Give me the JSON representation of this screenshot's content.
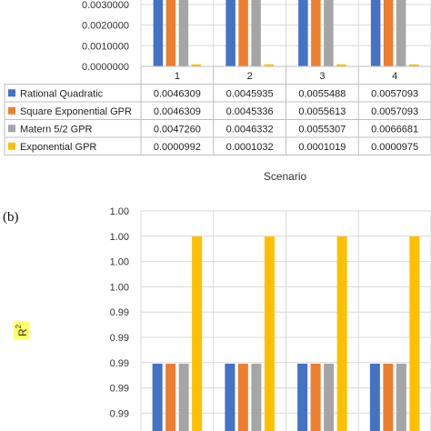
{
  "chart_data": [
    {
      "type": "bar",
      "panel": "",
      "categories": [
        "1",
        "2",
        "3",
        "4"
      ],
      "series": [
        {
          "name": "Rational Quadratic",
          "color": "#4472C4",
          "values_text": [
            "0.0046309",
            "0.0045935",
            "0.0055488",
            "0.0057093"
          ],
          "values": [
            0.0046309,
            0.0045935,
            0.0055488,
            0.0057093
          ]
        },
        {
          "name": "Square Exponential GPR",
          "color": "#ED7D31",
          "values_text": [
            "0.0046309",
            "0.0045336",
            "0.0055613",
            "0.0057093"
          ],
          "values": [
            0.0046309,
            0.0045336,
            0.0055613,
            0.0057093
          ]
        },
        {
          "name": "Matern 5/2 GPR",
          "color": "#A5A5A5",
          "values_text": [
            "0.0047260",
            "0.0046332",
            "0.0055307",
            "0.0066681"
          ],
          "values": [
            0.004726,
            0.0046332,
            0.0055307,
            0.0066681
          ]
        },
        {
          "name": "Exponential GPR",
          "color": "#FFC000",
          "values_text": [
            "0.0000992",
            "0.0001032",
            "0.0001019",
            "0.0000975"
          ],
          "values": [
            9.92e-05,
            0.0001032,
            0.0001019,
            9.75e-05
          ]
        }
      ],
      "yticks": [
        "0.0030000",
        "0.0020000",
        "0.0010000",
        "0.0000000"
      ],
      "ylim": [
        0,
        0.003
      ],
      "xlabel": "Scenario",
      "ylabel": "",
      "data_table": true,
      "grid": true
    },
    {
      "type": "bar",
      "panel": "(b)",
      "categories": [
        "1",
        "2",
        "3",
        "4"
      ],
      "series": [
        {
          "name": "Rational Quadratic",
          "color": "#4472C4",
          "values": [
            0.99,
            0.99,
            0.99,
            0.99
          ]
        },
        {
          "name": "Square Exponential GPR",
          "color": "#ED7D31",
          "values": [
            0.99,
            0.99,
            0.99,
            0.99
          ]
        },
        {
          "name": "Matern 5/2 GPR",
          "color": "#A5A5A5",
          "values": [
            0.99,
            0.99,
            0.99,
            0.99
          ]
        },
        {
          "name": "Exponential GPR",
          "color": "#FFC000",
          "values": [
            1.0,
            1.0,
            1.0,
            1.0
          ]
        }
      ],
      "yticks": [
        "1.00",
        "1.00",
        "1.00",
        "1.00",
        "0.99",
        "0.99",
        "0.99",
        "0.99",
        "0.99"
      ],
      "ylabel": "R2",
      "ylabel_main": "R",
      "ylabel_sup": "2",
      "ylabel_highlight": "#FFFF66",
      "grid": true
    }
  ]
}
